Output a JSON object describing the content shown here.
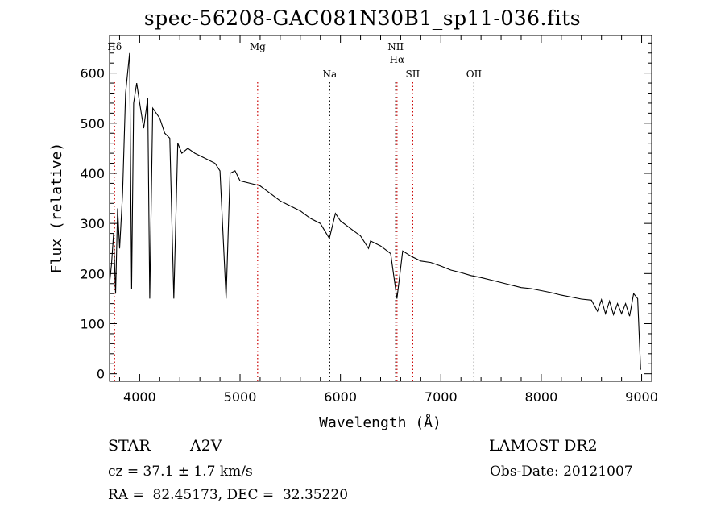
{
  "chart_data": {
    "type": "line",
    "title": "spec-56208-GAC081N30B1_sp11-036.fits",
    "xlabel": "Wavelength (Å)",
    "ylabel": "Flux (relative)",
    "xlim": [
      3700,
      9100
    ],
    "ylim": [
      -15,
      675
    ],
    "x_ticks": [
      4000,
      5000,
      6000,
      7000,
      8000,
      9000
    ],
    "y_ticks": [
      0,
      100,
      200,
      300,
      400,
      500,
      600
    ],
    "grid": false,
    "line_color": "#000000",
    "series": [
      {
        "x": [
          3700,
          3720,
          3740,
          3760,
          3780,
          3800,
          3830,
          3860,
          3880,
          3900,
          3920,
          3940,
          3970,
          4000,
          4040,
          4080,
          4100,
          4130,
          4200,
          4250,
          4300,
          4340,
          4380,
          4420,
          4480,
          4550,
          4650,
          4750,
          4800,
          4861,
          4900,
          4950,
          5000,
          5100,
          5200,
          5300,
          5400,
          5500,
          5600,
          5700,
          5800,
          5890,
          5950,
          6000,
          6100,
          6200,
          6280,
          6300,
          6400,
          6500,
          6563,
          6620,
          6700,
          6800,
          6900,
          7000,
          7100,
          7200,
          7300,
          7400,
          7500,
          7600,
          7700,
          7800,
          7900,
          8000,
          8100,
          8200,
          8300,
          8400,
          8500,
          8560,
          8600,
          8640,
          8680,
          8720,
          8760,
          8800,
          8840,
          8880,
          8920,
          8960,
          8990
        ],
        "y": [
          180,
          220,
          280,
          160,
          330,
          250,
          360,
          560,
          600,
          640,
          170,
          540,
          580,
          540,
          490,
          550,
          150,
          530,
          510,
          480,
          470,
          150,
          460,
          440,
          450,
          440,
          430,
          420,
          405,
          150,
          400,
          405,
          385,
          380,
          375,
          360,
          345,
          335,
          325,
          310,
          300,
          270,
          320,
          305,
          290,
          275,
          250,
          265,
          255,
          240,
          150,
          245,
          235,
          225,
          222,
          215,
          207,
          202,
          196,
          192,
          187,
          182,
          177,
          172,
          170,
          166,
          162,
          157,
          153,
          149,
          147,
          125,
          148,
          120,
          145,
          118,
          140,
          120,
          140,
          115,
          160,
          150,
          8
        ]
      }
    ],
    "line_markers": [
      {
        "label": "Hδ",
        "wavelength": 3750,
        "color": "#cc0000",
        "row": "top"
      },
      {
        "label": "Mg",
        "wavelength": 5175,
        "color": "#cc0000",
        "row": "top"
      },
      {
        "label": "Na",
        "wavelength": 5893,
        "color": "#000000",
        "row": "mid"
      },
      {
        "label": "NII",
        "wavelength": 6550,
        "color": "#000000",
        "row": "top"
      },
      {
        "label": "Hα",
        "wavelength": 6563,
        "color": "#cc0000",
        "row": "second"
      },
      {
        "label": "SII",
        "wavelength": 6720,
        "color": "#cc0000",
        "row": "mid"
      },
      {
        "label": "OII",
        "wavelength": 7330,
        "color": "#000000",
        "row": "mid"
      }
    ]
  },
  "info": {
    "class_label": "STAR",
    "subclass": "A2V",
    "survey": "LAMOST DR2",
    "cz_line": "cz = 37.1 ± 1.7 km/s",
    "obs_date_line": "Obs-Date: 20121007",
    "coords_line": "RA =  82.45173, DEC =  32.35220"
  }
}
